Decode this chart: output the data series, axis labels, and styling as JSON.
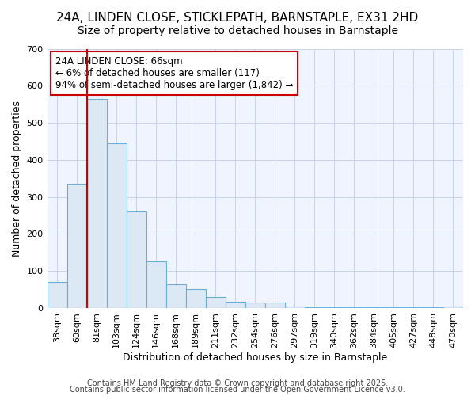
{
  "title_line1": "24A, LINDEN CLOSE, STICKLEPATH, BARNSTAPLE, EX31 2HD",
  "title_line2": "Size of property relative to detached houses in Barnstaple",
  "xlabel": "Distribution of detached houses by size in Barnstaple",
  "ylabel": "Number of detached properties",
  "footer_line1": "Contains HM Land Registry data © Crown copyright and database right 2025.",
  "footer_line2": "Contains public sector information licensed under the Open Government Licence v3.0.",
  "annotation_title": "24A LINDEN CLOSE: 66sqm",
  "annotation_line2": "← 6% of detached houses are smaller (117)",
  "annotation_line3": "94% of semi-detached houses are larger (1,842) →",
  "red_line_x": 1.5,
  "bar_labels": [
    "38sqm",
    "60sqm",
    "81sqm",
    "103sqm",
    "124sqm",
    "146sqm",
    "168sqm",
    "189sqm",
    "211sqm",
    "232sqm",
    "254sqm",
    "276sqm",
    "297sqm",
    "319sqm",
    "340sqm",
    "362sqm",
    "384sqm",
    "405sqm",
    "427sqm",
    "448sqm",
    "470sqm"
  ],
  "bar_values": [
    70,
    335,
    565,
    445,
    260,
    125,
    65,
    52,
    30,
    17,
    15,
    15,
    4,
    2,
    1,
    1,
    1,
    1,
    1,
    1,
    4
  ],
  "bar_color": "#dce9f5",
  "bar_edge_color": "#6aaed6",
  "red_line_color": "#cc0000",
  "background_color": "#ffffff",
  "plot_bg_color": "#f0f4ff",
  "ylim": [
    0,
    700
  ],
  "yticks": [
    0,
    100,
    200,
    300,
    400,
    500,
    600,
    700
  ],
  "grid_color": "#c8d4e8",
  "title_fontsize": 11,
  "subtitle_fontsize": 10,
  "axis_label_fontsize": 9,
  "tick_fontsize": 8,
  "footer_fontsize": 7,
  "annotation_fontsize": 8.5
}
